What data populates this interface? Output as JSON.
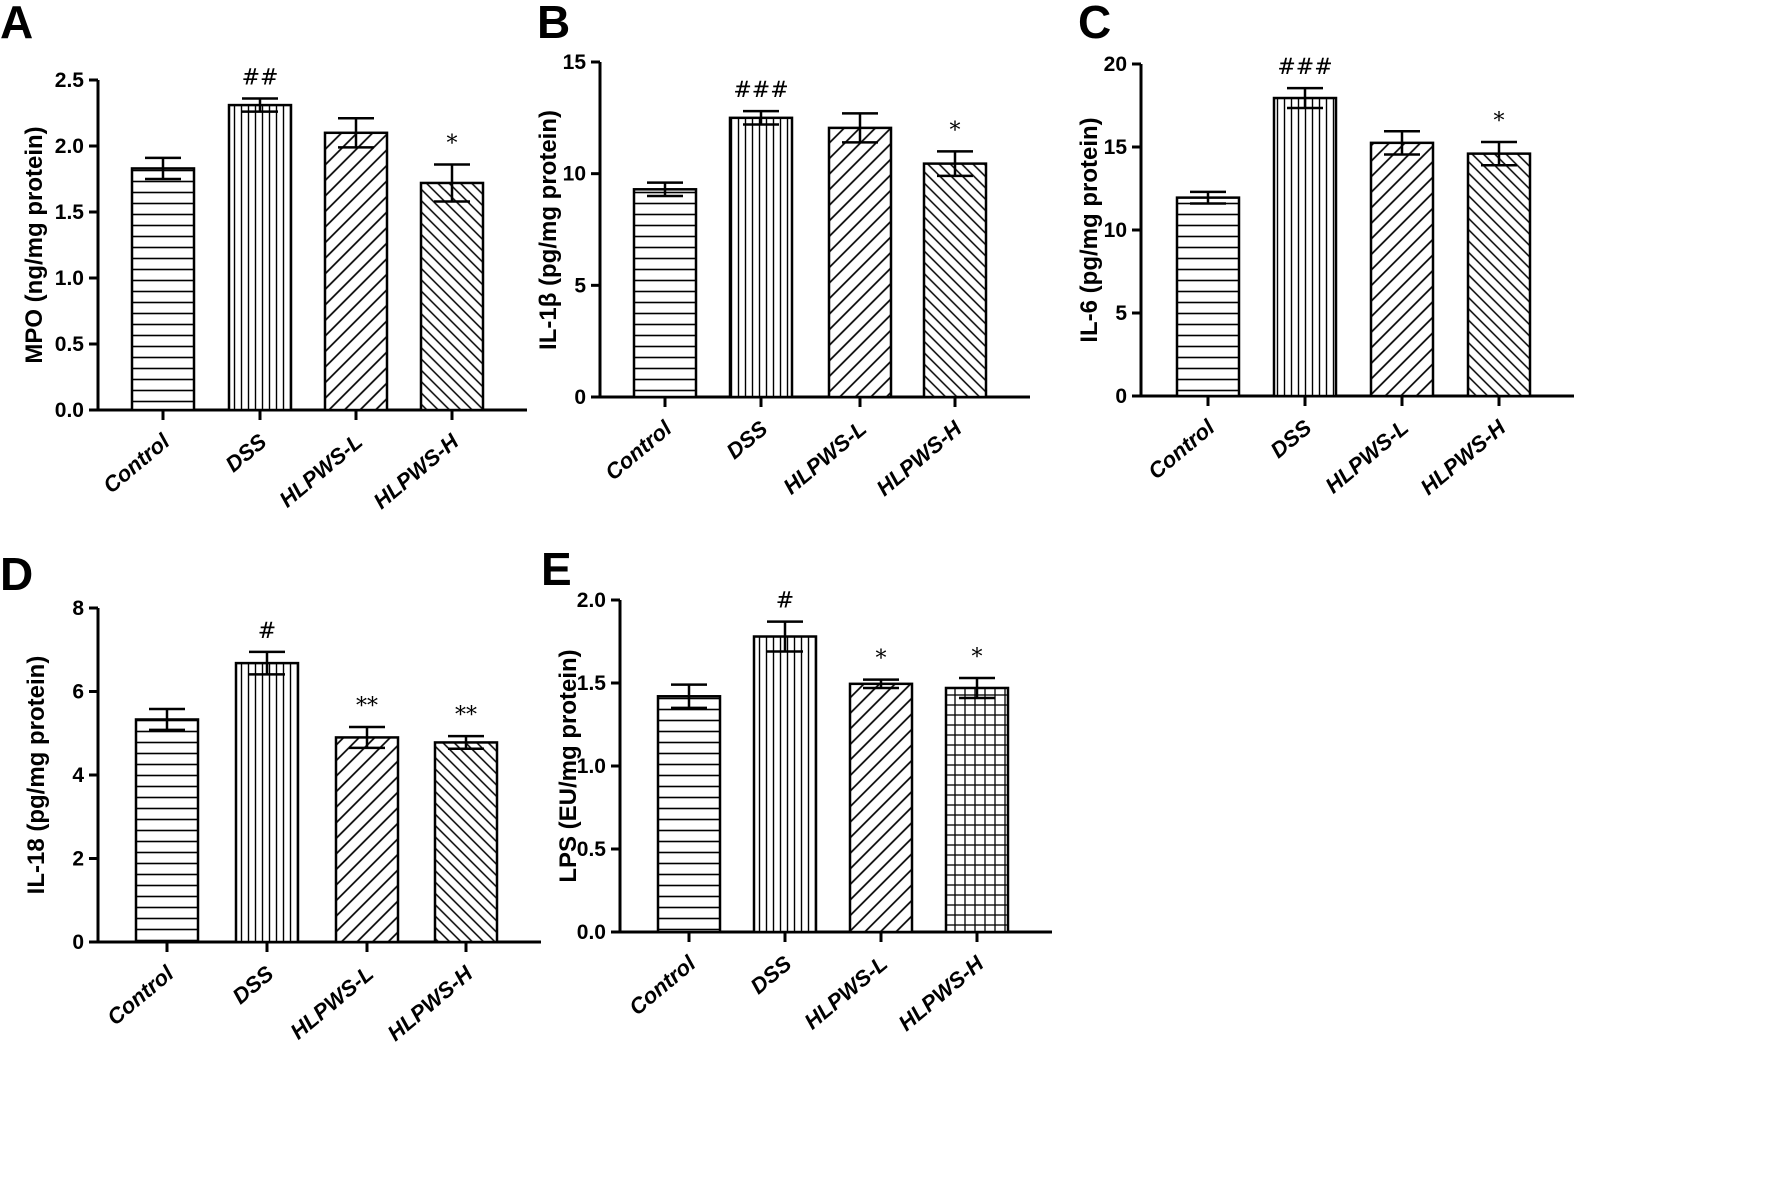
{
  "chart_data": [
    {
      "panel": "A",
      "type": "bar",
      "ylabel": "MPO (ng/mg protein)",
      "ylim": [
        0,
        2.5
      ],
      "yticks": [
        "0.0",
        "0.5",
        "1.0",
        "1.5",
        "2.0",
        "2.5"
      ],
      "categories": [
        "Control",
        "DSS",
        "HLPWS-L",
        "HLPWS-H"
      ],
      "values": [
        1.83,
        2.31,
        2.1,
        1.72
      ],
      "errors": [
        0.08,
        0.05,
        0.11,
        0.14
      ],
      "significance": [
        "",
        "##",
        "",
        "*"
      ],
      "patterns": [
        "hlines",
        "vlines",
        "diag",
        "diag-dense"
      ],
      "grid": false,
      "legend": "none"
    },
    {
      "panel": "B",
      "type": "bar",
      "ylabel": "IL-1β (pg/mg protein)",
      "ylim": [
        0,
        15
      ],
      "yticks": [
        "0",
        "5",
        "10",
        "15"
      ],
      "categories": [
        "Control",
        "DSS",
        "HLPWS-L",
        "HLPWS-H"
      ],
      "values": [
        9.3,
        12.5,
        12.05,
        10.45
      ],
      "errors": [
        0.3,
        0.3,
        0.65,
        0.55
      ],
      "significance": [
        "",
        "###",
        "",
        "*"
      ],
      "patterns": [
        "hlines",
        "vlines",
        "diag",
        "diag-dense"
      ],
      "grid": false,
      "legend": "none"
    },
    {
      "panel": "C",
      "type": "bar",
      "ylabel": "IL-6 (pg/mg protein)",
      "ylim": [
        0,
        20
      ],
      "yticks": [
        "0",
        "5",
        "10",
        "15",
        "20"
      ],
      "categories": [
        "Control",
        "DSS",
        "HLPWS-L",
        "HLPWS-H"
      ],
      "values": [
        11.95,
        17.95,
        15.25,
        14.6
      ],
      "errors": [
        0.35,
        0.6,
        0.7,
        0.7
      ],
      "significance": [
        "",
        "###",
        "",
        "*"
      ],
      "patterns": [
        "hlines",
        "vlines",
        "diag",
        "diag-dense"
      ],
      "grid": false,
      "legend": "none"
    },
    {
      "panel": "D",
      "type": "bar",
      "ylabel": "IL-18 (pg/mg protein)",
      "ylim": [
        0,
        8
      ],
      "yticks": [
        "0",
        "2",
        "4",
        "6",
        "8"
      ],
      "categories": [
        "Control",
        "DSS",
        "HLPWS-L",
        "HLPWS-H"
      ],
      "values": [
        5.33,
        6.68,
        4.9,
        4.78
      ],
      "errors": [
        0.25,
        0.27,
        0.25,
        0.15
      ],
      "significance": [
        "",
        "#",
        "**",
        "**"
      ],
      "patterns": [
        "hlines",
        "vlines",
        "diag",
        "diag-dense"
      ],
      "grid": false,
      "legend": "none"
    },
    {
      "panel": "E",
      "type": "bar",
      "ylabel": "LPS (EU/mg protein)",
      "ylim": [
        0,
        2.0
      ],
      "yticks": [
        "0.0",
        "0.5",
        "1.0",
        "1.5",
        "2.0"
      ],
      "categories": [
        "Control",
        "DSS",
        "HLPWS-L",
        "HLPWS-H"
      ],
      "values": [
        1.42,
        1.78,
        1.495,
        1.47
      ],
      "errors": [
        0.07,
        0.09,
        0.025,
        0.06
      ],
      "significance": [
        "",
        "#",
        "*",
        "*"
      ],
      "patterns": [
        "hlines",
        "vlines",
        "diag",
        "grid"
      ],
      "grid": false,
      "legend": "none"
    }
  ]
}
